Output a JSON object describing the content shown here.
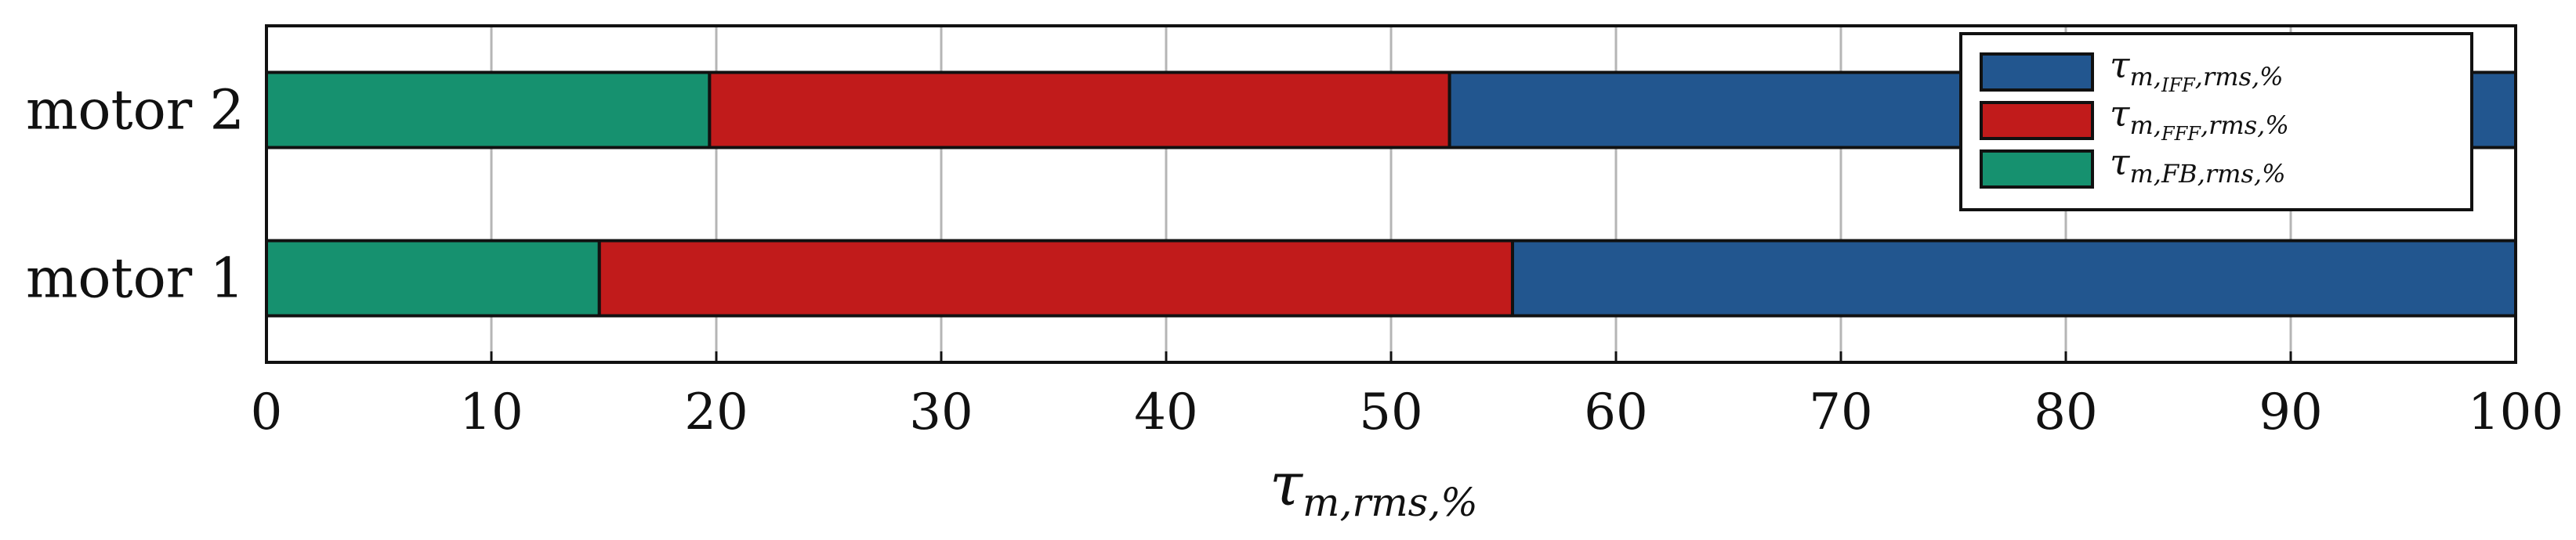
{
  "chart_data": {
    "type": "bar",
    "orientation": "horizontal",
    "stacked": true,
    "categories": [
      "motor 1",
      "motor 2"
    ],
    "series": [
      {
        "name": "τm,FB,rms,%",
        "color": "#16916f",
        "values": [
          14.8,
          19.7
        ]
      },
      {
        "name": "τm,FFF,rms,%",
        "color": "#c11b1b",
        "values": [
          40.6,
          32.9
        ]
      },
      {
        "name": "τm,IFF,rms,%",
        "color": "#22568f",
        "values": [
          44.6,
          47.4
        ]
      }
    ],
    "legend": {
      "position": "top-right",
      "entries": [
        {
          "tau": "τ",
          "sub": "m,",
          "subsub": "IFF",
          "sub2": ",rms,%",
          "color": "#22568f"
        },
        {
          "tau": "τ",
          "sub": "m,",
          "subsub": "FFF",
          "sub2": ",rms,%",
          "color": "#c11b1b"
        },
        {
          "tau": "τ",
          "sub": "m,FB,rms,%",
          "subsub": "",
          "sub2": "",
          "color": "#16916f"
        }
      ]
    },
    "xlabel": {
      "main": "τ",
      "sub": "m,rms,%"
    },
    "xlim": [
      0,
      100
    ],
    "xticks": [
      0,
      10,
      20,
      30,
      40,
      50,
      60,
      70,
      80,
      90,
      100
    ],
    "grid": "vertical"
  }
}
